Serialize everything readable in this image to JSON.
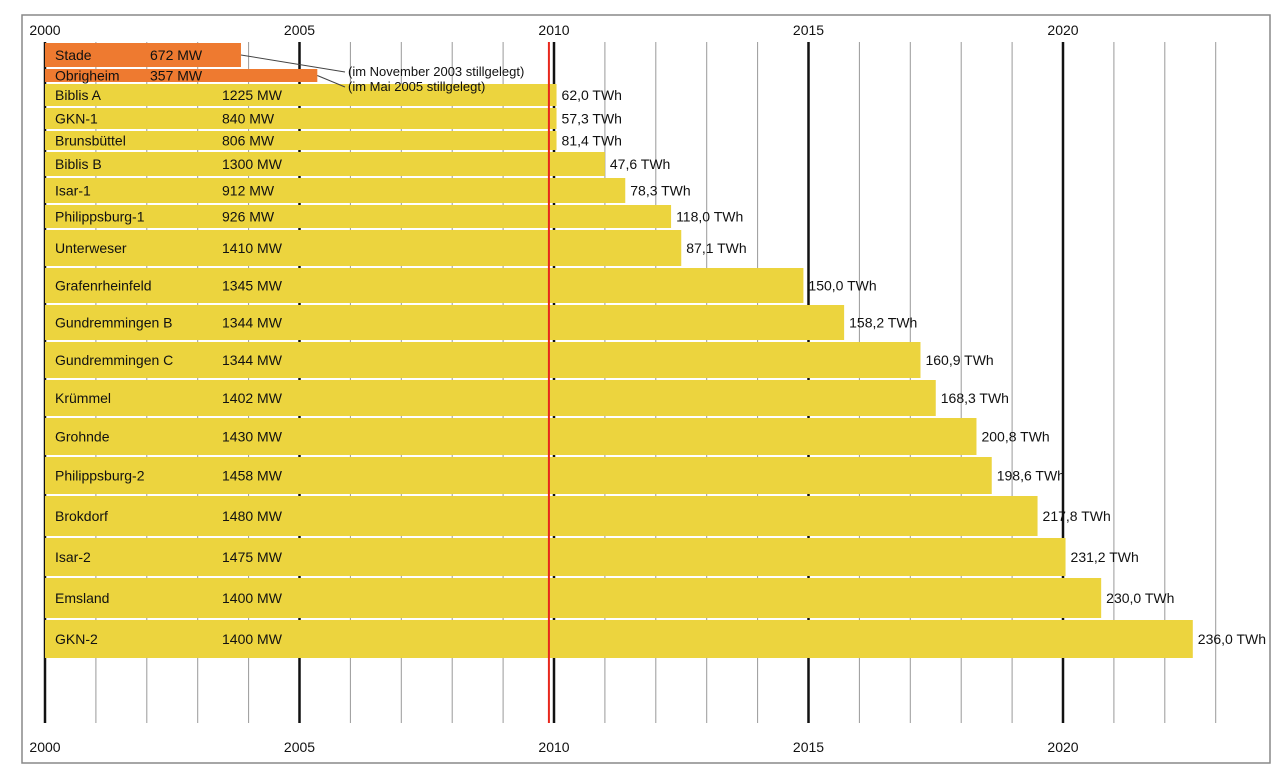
{
  "chart_data": {
    "type": "bar",
    "orientation": "horizontal",
    "x_axis": {
      "range": [
        2000,
        2023
      ],
      "ticks": [
        2000,
        2005,
        2010,
        2015,
        2020
      ],
      "tick_labels": [
        "2000",
        "2005",
        "2010",
        "2015",
        "2020"
      ],
      "position": "top and bottom"
    },
    "reference_line": {
      "x": 2009.9,
      "color": "#e8271c"
    },
    "colors": {
      "active": "#ecd43e",
      "shutdown": "#ee7a30",
      "frame": "#888888"
    },
    "series": [
      {
        "name": "Stade",
        "power": "672 MW",
        "end": 2003.85,
        "status": "shutdown",
        "note": "(im November 2003 stillgelegt)"
      },
      {
        "name": "Obrigheim",
        "power": "357 MW",
        "end": 2005.35,
        "status": "shutdown",
        "note": "(im Mai 2005 stillgelegt)"
      },
      {
        "name": "Biblis A",
        "power": "1225 MW",
        "end": 2010.05,
        "energy": "62,0 TWh"
      },
      {
        "name": "GKN-1",
        "power": "840 MW",
        "end": 2010.05,
        "energy": "57,3 TWh"
      },
      {
        "name": "Brunsbüttel",
        "power": "806 MW",
        "end": 2010.05,
        "energy": "81,4 TWh"
      },
      {
        "name": "Biblis B",
        "power": "1300 MW",
        "end": 2011.0,
        "energy": "47,6 TWh"
      },
      {
        "name": "Isar-1",
        "power": "912 MW",
        "end": 2011.4,
        "energy": "78,3 TWh"
      },
      {
        "name": "Philippsburg-1",
        "power": "926 MW",
        "end": 2012.3,
        "energy": "118,0 TWh"
      },
      {
        "name": "Unterweser",
        "power": "1410 MW",
        "end": 2012.5,
        "energy": "87,1 TWh"
      },
      {
        "name": "Grafenrheinfeld",
        "power": "1345 MW",
        "end": 2014.9,
        "energy": "150,0 TWh"
      },
      {
        "name": "Gundremmingen B",
        "power": "1344 MW",
        "end": 2015.7,
        "energy": "158,2 TWh"
      },
      {
        "name": "Gundremmingen C",
        "power": "1344 MW",
        "end": 2017.2,
        "energy": "160,9 TWh"
      },
      {
        "name": "Krümmel",
        "power": "1402 MW",
        "end": 2017.5,
        "energy": "168,3 TWh"
      },
      {
        "name": "Grohnde",
        "power": "1430 MW",
        "end": 2018.3,
        "energy": "200,8 TWh"
      },
      {
        "name": "Philippsburg-2",
        "power": "1458 MW",
        "end": 2018.6,
        "energy": "198,6 TWh"
      },
      {
        "name": "Brokdorf",
        "power": "1480 MW",
        "end": 2019.5,
        "energy": "217,8 TWh"
      },
      {
        "name": "Isar-2",
        "power": "1475 MW",
        "end": 2020.05,
        "energy": "231,2 TWh"
      },
      {
        "name": "Emsland",
        "power": "1400 MW",
        "end": 2020.75,
        "energy": "230,0 TWh"
      },
      {
        "name": "GKN-2",
        "power": "1400 MW",
        "end": 2022.55,
        "energy": "236,0 TWh"
      }
    ]
  }
}
